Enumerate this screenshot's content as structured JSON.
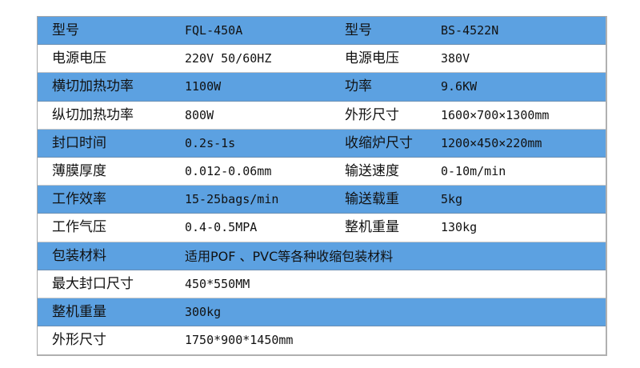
{
  "colors": {
    "blue_row": "#5ca1e1",
    "white_row": "#ffffff"
  },
  "rows": [
    {
      "label": "型号",
      "value": "FQL-450A",
      "label2": "型号",
      "value2": "BS-4522N"
    },
    {
      "label": "电源电压",
      "value": "220V  50/60HZ",
      "label2": "电源电压",
      "value2": "380V"
    },
    {
      "label": "横切加热功率",
      "value": "1100W",
      "label2": "功率",
      "value2": "9.6KW"
    },
    {
      "label": "纵切加热功率",
      "value": "800W",
      "label2": "外形尺寸",
      "value2": "1600×700×1300mm"
    },
    {
      "label": "封口时间",
      "value": "0.2s-1s",
      "label2": "收缩炉尺寸",
      "value2": "1200×450×220mm"
    },
    {
      "label": "薄膜厚度",
      "value": "0.012-0.06mm",
      "label2": "输送速度",
      "value2": "0-10m/min"
    },
    {
      "label": "工作效率",
      "value": "15-25bags/min",
      "label2": "输送载重",
      "value2": "5kg"
    },
    {
      "label": "工作气压",
      "value": "0.4-0.5MPA",
      "label2": "整机重量",
      "value2": "130kg"
    },
    {
      "label": "包装材料",
      "value": "适用POF 、PVC等各种收缩包装材料"
    },
    {
      "label": "最大封口尺寸",
      "value": "450*550MM"
    },
    {
      "label": "整机重量",
      "value": "300kg"
    },
    {
      "label": "外形尺寸",
      "value": "1750*900*1450mm"
    }
  ]
}
